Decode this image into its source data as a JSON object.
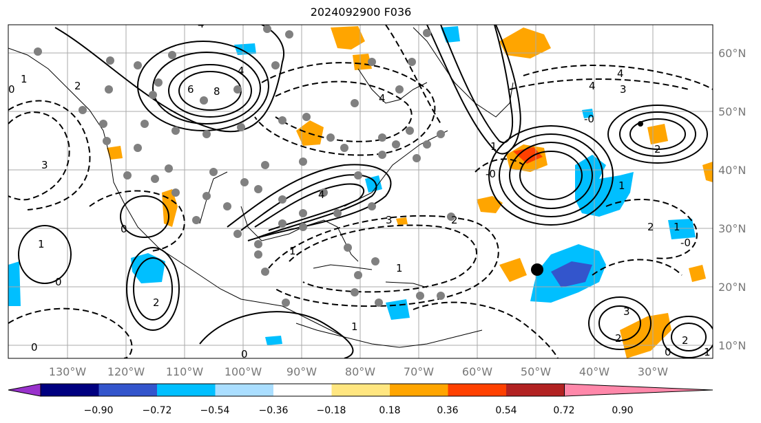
{
  "title": "2024092900 F036",
  "lon_labels": [
    "130°W",
    "120°W",
    "110°W",
    "100°W",
    "90°W",
    "80°W",
    "70°W",
    "60°W",
    "50°W",
    "40°W",
    "30°W"
  ],
  "lat_labels": [
    "60°N",
    "50°N",
    "40°N",
    "30°N",
    "20°N",
    "10°N"
  ],
  "colorbar": {
    "ticks": [
      "−0.90",
      "−0.72",
      "−0.54",
      "−0.36",
      "−0.18",
      "0.18",
      "0.36",
      "0.54",
      "0.72",
      "0.90"
    ],
    "colors": [
      "#9932cc",
      "#000080",
      "#3355cc",
      "#00bfff",
      "#aadeff",
      "#ffffff",
      "#ffe680",
      "#ffa500",
      "#ff4000",
      "#b22222",
      "#ff88aa"
    ]
  },
  "contour_labels": [
    "8",
    "4",
    "6",
    "4",
    "2",
    "1",
    "0",
    "3",
    "4",
    "-0",
    "1",
    "2",
    "3",
    "4",
    "2",
    "1",
    "0",
    "2",
    "3",
    "4",
    "3",
    "1",
    "0",
    "1",
    "2",
    "0",
    "-0",
    "2",
    "1",
    "0",
    "1",
    "1",
    "0",
    "-0",
    "2",
    "4",
    "1"
  ]
}
